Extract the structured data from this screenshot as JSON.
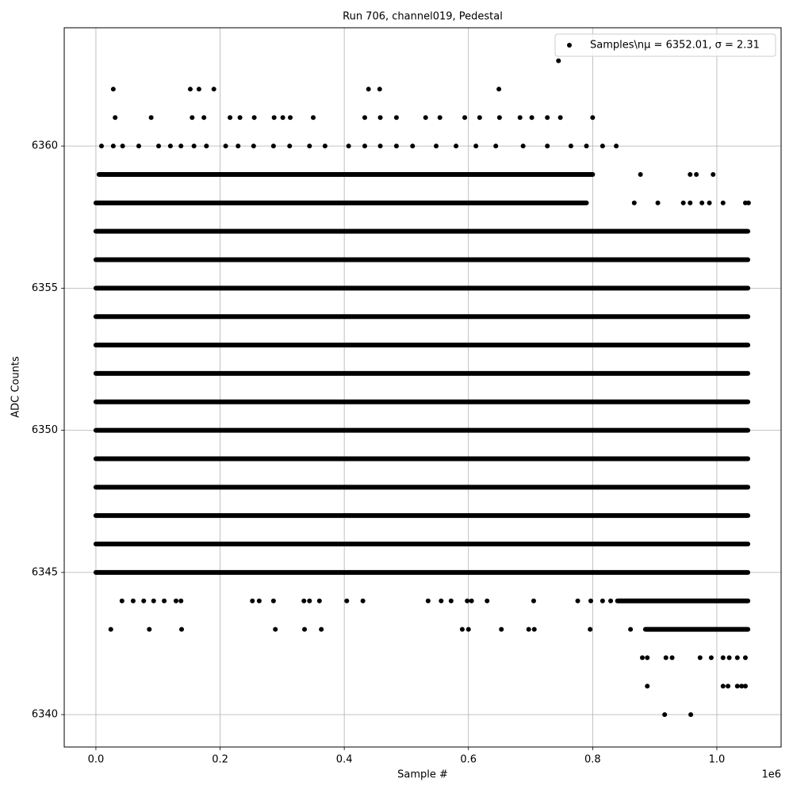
{
  "chart_data": {
    "type": "scatter",
    "title": "Run 706, channel019, Pedestal",
    "x_label": "Sample #",
    "y_label": "ADC Counts",
    "x_offset_label": "1e6",
    "xlim": [
      -51000,
      1103500
    ],
    "ylim": [
      6338.86,
      6364.16
    ],
    "xticks": [
      {
        "value": 0,
        "label": "0.0"
      },
      {
        "value": 200000,
        "label": "0.2"
      },
      {
        "value": 400000,
        "label": "0.4"
      },
      {
        "value": 600000,
        "label": "0.6"
      },
      {
        "value": 800000,
        "label": "0.8"
      },
      {
        "value": 1000000,
        "label": "1.0"
      }
    ],
    "yticks": [
      6340,
      6345,
      6350,
      6355,
      6360
    ],
    "grid": true,
    "legend": "upper right",
    "series": [
      {
        "name": "Samples\\nμ = 6352.01, σ = 2.31",
        "color": "#000000",
        "runs": [
          {
            "y": 6359,
            "x": [
              5000,
              800000
            ]
          },
          {
            "y": 6358,
            "x": [
              0,
              790000
            ]
          },
          {
            "y": 6357,
            "x": [
              0,
              1050000
            ]
          },
          {
            "y": 6356,
            "x": [
              0,
              1050000
            ]
          },
          {
            "y": 6355,
            "x": [
              0,
              1050000
            ]
          },
          {
            "y": 6354,
            "x": [
              0,
              1050000
            ]
          },
          {
            "y": 6353,
            "x": [
              0,
              1050000
            ]
          },
          {
            "y": 6352,
            "x": [
              0,
              1050000
            ]
          },
          {
            "y": 6351,
            "x": [
              0,
              1050000
            ]
          },
          {
            "y": 6350,
            "x": [
              0,
              1050000
            ]
          },
          {
            "y": 6349,
            "x": [
              0,
              1050000
            ]
          },
          {
            "y": 6348,
            "x": [
              0,
              1050000
            ]
          },
          {
            "y": 6347,
            "x": [
              0,
              1050000
            ]
          },
          {
            "y": 6346,
            "x": [
              0,
              1050000
            ]
          },
          {
            "y": 6345,
            "x": [
              0,
              1050000
            ]
          },
          {
            "y": 6344,
            "x": [
              840000,
              1050000
            ]
          },
          {
            "y": 6343,
            "x": [
              885000,
              1050000
            ]
          }
        ],
        "points": [
          {
            "y": 6363,
            "x": [
              745000
            ]
          },
          {
            "y": 6362,
            "x": [
              28000,
              152000,
              166000,
              190000,
              439000,
              457000,
              649000
            ]
          },
          {
            "y": 6361,
            "x": [
              31000,
              89000,
              155000,
              174000,
              216000,
              232000,
              255000,
              287000,
              301000,
              313000,
              350000,
              433000,
              458000,
              484000,
              531000,
              554000,
              594000,
              618000,
              650000,
              683000,
              702000,
              727000,
              748000,
              800000
            ]
          },
          {
            "y": 6360,
            "x": [
              9000,
              28000,
              43000,
              69000,
              101000,
              120000,
              137000,
              158000,
              178000,
              209000,
              229000,
              254000,
              286000,
              312000,
              344000,
              369000,
              407000,
              433000,
              458000,
              484000,
              510000,
              548000,
              580000,
              612000,
              644000,
              688000,
              727000,
              765000,
              790000,
              816000,
              838000
            ]
          },
          {
            "y": 6359,
            "x": [
              877000,
              957000,
              967000,
              994000
            ]
          },
          {
            "y": 6358,
            "x": [
              867000,
              905000,
              946000,
              957000,
              976000,
              988000,
              1010000,
              1046000,
              1051000
            ]
          },
          {
            "y": 6344,
            "x": [
              42000,
              60000,
              77000,
              93000,
              110000,
              129000,
              137000,
              252000,
              263000,
              286000,
              335000,
              344000,
              360000,
              404000,
              430000,
              535000,
              556000,
              572000,
              598000,
              605000,
              630000,
              705000,
              776000,
              797000,
              816000,
              829000
            ]
          },
          {
            "y": 6343,
            "x": [
              24000,
              86000,
              138000,
              289000,
              336000,
              363000,
              590000,
              600000,
              653000,
              697000,
              706000,
              796000,
              861000
            ]
          },
          {
            "y": 6342,
            "x": [
              880000,
              888000,
              918000,
              928000,
              973000,
              991000,
              1010000,
              1020000,
              1033000,
              1046000
            ]
          },
          {
            "y": 6341,
            "x": [
              888000,
              1010000,
              1018000,
              1033000,
              1040000,
              1046000
            ]
          },
          {
            "y": 6340,
            "x": [
              916000,
              958000
            ]
          }
        ]
      }
    ]
  }
}
